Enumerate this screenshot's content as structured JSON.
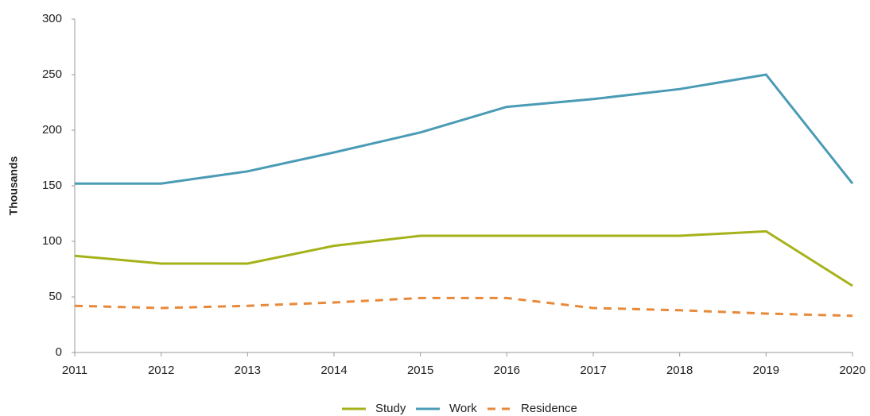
{
  "chart_data": {
    "type": "line",
    "y_label": "Thousands",
    "x": [
      2011,
      2012,
      2013,
      2014,
      2015,
      2016,
      2017,
      2018,
      2019,
      2020
    ],
    "xlim": [
      2011,
      2020
    ],
    "xticks": [
      2011,
      2012,
      2013,
      2014,
      2015,
      2016,
      2017,
      2018,
      2019,
      2020
    ],
    "ylim": [
      0,
      300
    ],
    "yticks": [
      0,
      50,
      100,
      150,
      200,
      250,
      300
    ],
    "grid": false,
    "legend": "bottom",
    "series": [
      {
        "name": "Study",
        "color": "#a5b21a",
        "dash": false,
        "values": [
          87,
          80,
          80,
          96,
          105,
          105,
          105,
          105,
          109,
          60
        ]
      },
      {
        "name": "Work",
        "color": "#4a9bb5",
        "dash": false,
        "values": [
          152,
          152,
          163,
          180,
          198,
          221,
          228,
          237,
          250,
          152
        ]
      },
      {
        "name": "Residence",
        "color": "#e8893a",
        "dash": true,
        "values": [
          42,
          40,
          42,
          45,
          49,
          49,
          40,
          38,
          35,
          33
        ]
      }
    ]
  }
}
